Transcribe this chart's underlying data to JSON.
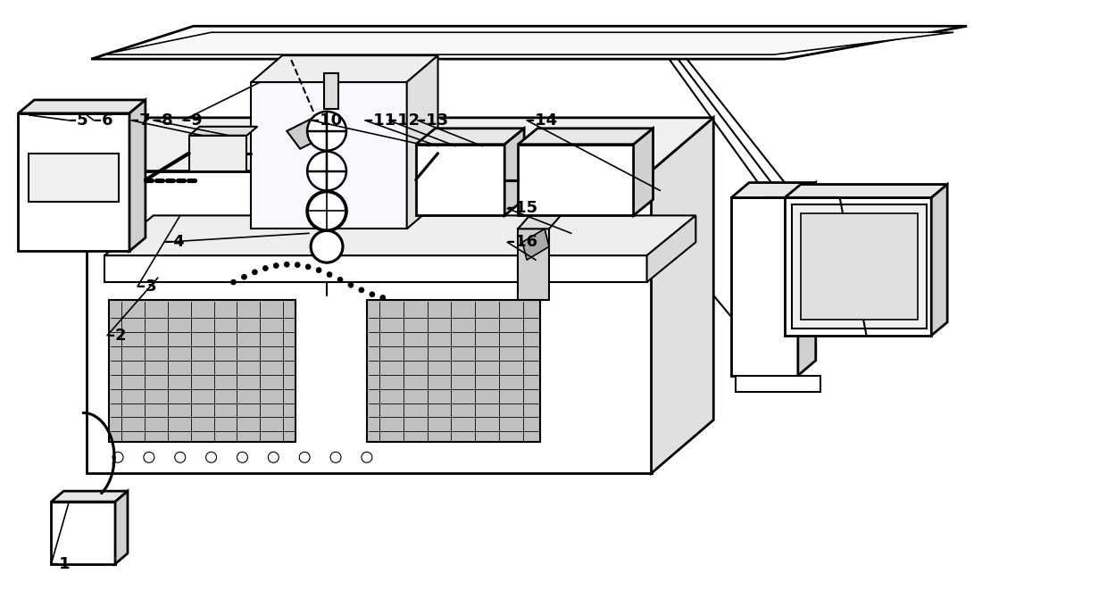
{
  "bg_color": "#ffffff",
  "lc": "#000000",
  "lw": 1.5,
  "lw2": 2.0,
  "fig_w": 12.4,
  "fig_h": 6.71
}
